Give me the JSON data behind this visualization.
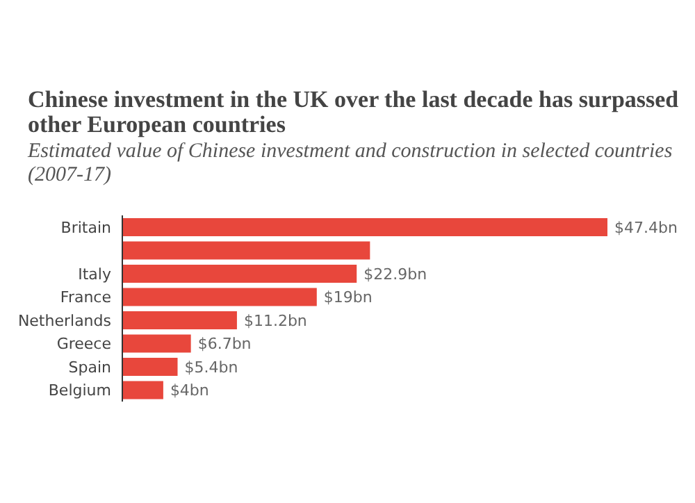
{
  "chart_data": {
    "type": "bar",
    "orientation": "horizontal",
    "title": "Chinese investment in the UK over the last decade has surpassed other European countries",
    "subtitle": "Estimated value of Chinese investment and construction in selected countries (2007-17)",
    "categories": [
      "Britain",
      null,
      "Italy",
      "France",
      "Netherlands",
      "Greece",
      "Spain",
      "Belgium"
    ],
    "values": [
      47.4,
      24.2,
      22.9,
      19,
      11.2,
      6.7,
      5.4,
      4
    ],
    "value_labels": [
      "$47.4bn",
      null,
      "$22.9bn",
      "$19bn",
      "$11.2bn",
      "$6.7bn",
      "$5.4bn",
      "$4bn"
    ],
    "color": "#e8473c"
  }
}
